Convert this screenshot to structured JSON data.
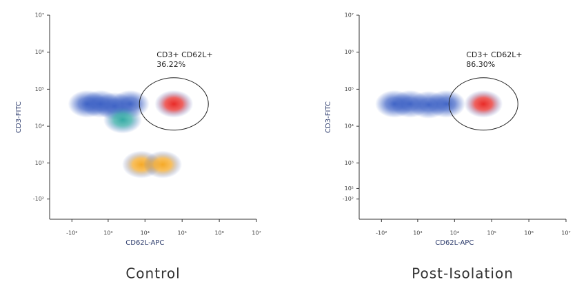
{
  "chart_data": [
    {
      "type": "scatter",
      "title": "Control",
      "xlabel": "CD62L-APC",
      "ylabel": "CD3-FITC",
      "annotations": [
        "CD3+ CD62L+",
        "36.22%"
      ],
      "xlim": [
        -800,
        10000000
      ],
      "ylim": [
        -700,
        10000000
      ],
      "xticks": [
        {
          "value": -100,
          "label": "-10²"
        },
        {
          "value": 1000,
          "label": "10³"
        },
        {
          "value": 10000,
          "label": "10⁴"
        },
        {
          "value": 100000,
          "label": "10⁵"
        },
        {
          "value": 1000000,
          "label": "10⁶"
        },
        {
          "value": 10000000,
          "label": "10⁷"
        }
      ],
      "yticks": [
        {
          "value": -100,
          "label": "-10²"
        },
        {
          "value": 1000,
          "label": "10³"
        },
        {
          "value": 10000,
          "label": "10⁴"
        },
        {
          "value": 100000,
          "label": "10⁵"
        },
        {
          "value": 1000000,
          "label": "10⁶"
        },
        {
          "value": 10000000,
          "label": "10⁷"
        }
      ],
      "series": [
        {
          "color": "#3a5fc4",
          "x": [
            200,
            600,
            1500,
            4000
          ],
          "values": [
            40000,
            40000,
            35000,
            40000
          ]
        },
        {
          "color": "#2aa6a0",
          "x": [
            2500
          ],
          "values": [
            15000
          ]
        },
        {
          "color": "#f5a51c",
          "x": [
            8000,
            30000
          ],
          "values": [
            900,
            900
          ]
        },
        {
          "color": "#e8201c",
          "x": [
            60000
          ],
          "values": [
            40000
          ]
        }
      ]
    },
    {
      "type": "scatter",
      "title": "Post-Isolation",
      "xlabel": "CD62L-APC",
      "ylabel": "CD3-FITC",
      "annotations": [
        "CD3+ CD62L+",
        "86.30%"
      ],
      "xlim": [
        -800,
        10000000
      ],
      "ylim": [
        -700,
        10000000
      ],
      "xticks": [
        {
          "value": -100,
          "label": "-10²"
        },
        {
          "value": 1000,
          "label": "10³"
        },
        {
          "value": 10000,
          "label": "10⁴"
        },
        {
          "value": 100000,
          "label": "10⁵"
        },
        {
          "value": 1000000,
          "label": "10⁶"
        },
        {
          "value": 10000000,
          "label": "10⁷"
        }
      ],
      "yticks": [
        {
          "value": -100,
          "label": "-10²"
        },
        {
          "value": 100,
          "label": "10²"
        },
        {
          "value": 1000,
          "label": "10³"
        },
        {
          "value": 10000,
          "label": "10⁴"
        },
        {
          "value": 100000,
          "label": "10⁵"
        },
        {
          "value": 1000000,
          "label": "10⁶"
        },
        {
          "value": 10000000,
          "label": "10⁷"
        }
      ],
      "series": [
        {
          "color": "#3a5fc4",
          "x": [
            150,
            600,
            2000,
            6000
          ],
          "values": [
            40000,
            40000,
            38000,
            40000
          ]
        },
        {
          "color": "#e8201c",
          "x": [
            60000
          ],
          "values": [
            40000
          ]
        }
      ]
    }
  ]
}
